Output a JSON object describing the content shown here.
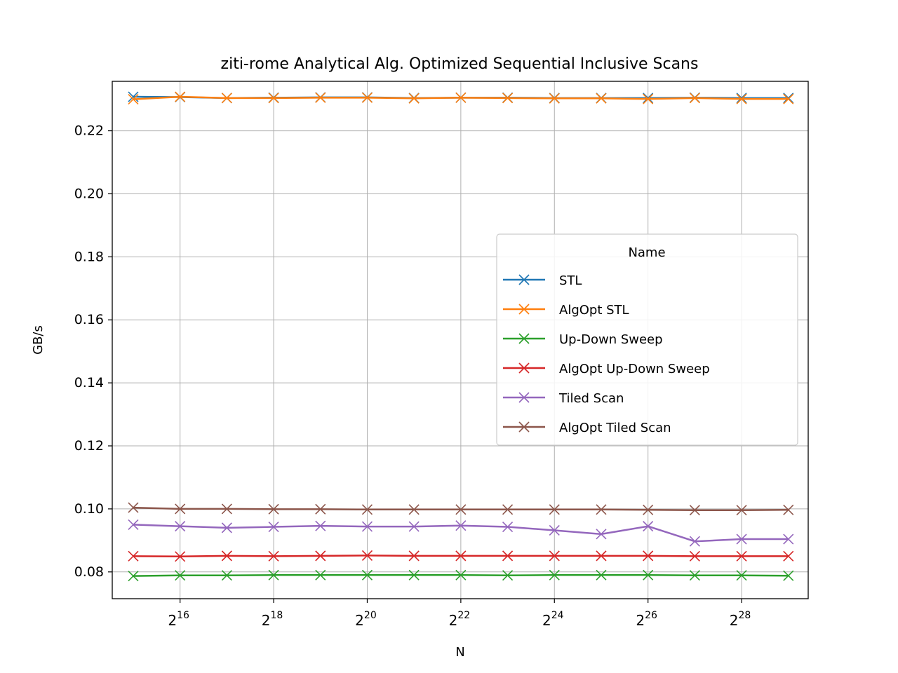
{
  "chart_data": {
    "type": "line",
    "title": "ziti-rome Analytical Alg. Optimized Sequential Inclusive Scans",
    "xlabel": "N",
    "ylabel": "GB/s",
    "x_scale": "log2",
    "x": [
      32768,
      65536,
      131072,
      262144,
      524288,
      1048576,
      2097152,
      4194304,
      8388608,
      16777216,
      33554432,
      67108864,
      134217728,
      268435456,
      536870912
    ],
    "xlim": [
      24000,
      720000000
    ],
    "ylim": [
      0.0715,
      0.2357
    ],
    "xticks": [
      {
        "value": 65536,
        "base": "2",
        "exp": "16"
      },
      {
        "value": 262144,
        "base": "2",
        "exp": "18"
      },
      {
        "value": 1048576,
        "base": "2",
        "exp": "20"
      },
      {
        "value": 4194304,
        "base": "2",
        "exp": "22"
      },
      {
        "value": 16777216,
        "base": "2",
        "exp": "24"
      },
      {
        "value": 67108864,
        "base": "2",
        "exp": "26"
      },
      {
        "value": 268435456,
        "base": "2",
        "exp": "28"
      }
    ],
    "yticks": [
      {
        "value": 0.08,
        "label": "0.08"
      },
      {
        "value": 0.1,
        "label": "0.10"
      },
      {
        "value": 0.12,
        "label": "0.12"
      },
      {
        "value": 0.14,
        "label": "0.14"
      },
      {
        "value": 0.16,
        "label": "0.16"
      },
      {
        "value": 0.18,
        "label": "0.18"
      },
      {
        "value": 0.2,
        "label": "0.20"
      },
      {
        "value": 0.22,
        "label": "0.22"
      }
    ],
    "grid": true,
    "legend": {
      "title": "Name",
      "placement": "center-right"
    },
    "series": [
      {
        "name": "STL",
        "color": "#1f77b4",
        "marker": "x",
        "values": [
          0.2308,
          0.2307,
          0.2304,
          0.2305,
          0.2306,
          0.2306,
          0.2304,
          0.2305,
          0.2305,
          0.2304,
          0.2304,
          0.2304,
          0.2305,
          0.2304,
          0.2304
        ]
      },
      {
        "name": "AlgOpt STL",
        "color": "#ff7f0e",
        "marker": "x",
        "values": [
          0.23,
          0.2308,
          0.2304,
          0.2304,
          0.2305,
          0.2305,
          0.2303,
          0.2305,
          0.2304,
          0.2303,
          0.2303,
          0.2301,
          0.2304,
          0.2301,
          0.2301
        ]
      },
      {
        "name": "Up-Down Sweep",
        "color": "#2ca02c",
        "marker": "x",
        "values": [
          0.0787,
          0.0789,
          0.0789,
          0.079,
          0.079,
          0.079,
          0.079,
          0.079,
          0.0789,
          0.079,
          0.079,
          0.079,
          0.0789,
          0.0789,
          0.0788
        ]
      },
      {
        "name": "AlgOpt Up-Down Sweep",
        "color": "#d62728",
        "marker": "x",
        "values": [
          0.085,
          0.0849,
          0.0851,
          0.085,
          0.0851,
          0.0852,
          0.0851,
          0.0851,
          0.0851,
          0.0851,
          0.0851,
          0.0851,
          0.085,
          0.085,
          0.085
        ]
      },
      {
        "name": "Tiled Scan",
        "color": "#9467bd",
        "marker": "x",
        "values": [
          0.095,
          0.0945,
          0.094,
          0.0943,
          0.0946,
          0.0944,
          0.0944,
          0.0947,
          0.0943,
          0.0932,
          0.092,
          0.0945,
          0.0897,
          0.0904,
          0.0904
        ]
      },
      {
        "name": "AlgOpt Tiled Scan",
        "color": "#8c564b",
        "marker": "x",
        "values": [
          0.1004,
          0.1,
          0.1,
          0.0999,
          0.0999,
          0.0998,
          0.0998,
          0.0998,
          0.0998,
          0.0998,
          0.0998,
          0.0997,
          0.0996,
          0.0996,
          0.0997
        ]
      }
    ]
  }
}
